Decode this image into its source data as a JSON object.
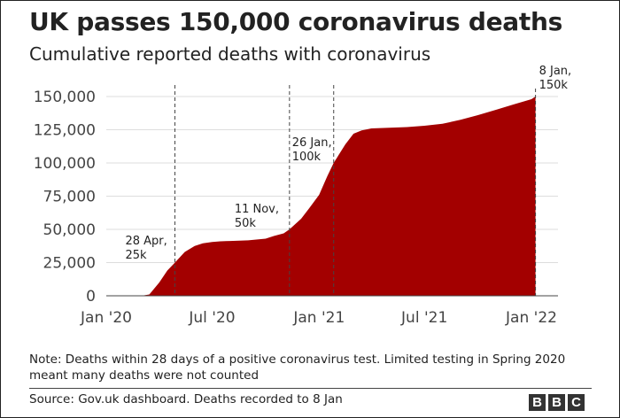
{
  "chart_data": {
    "type": "area",
    "title": "UK passes 150,000 coronavirus deaths",
    "subtitle": "Cumulative reported deaths with coronavirus",
    "xlabel": "",
    "ylabel": "",
    "ylim": [
      0,
      150000
    ],
    "grid": true,
    "area_color": "#a30000",
    "y_ticks": [
      {
        "value": 0,
        "label": "0"
      },
      {
        "value": 25000,
        "label": "25,000"
      },
      {
        "value": 50000,
        "label": "50,000"
      },
      {
        "value": 75000,
        "label": "75,000"
      },
      {
        "value": 100000,
        "label": "100,000"
      },
      {
        "value": 125000,
        "label": "125,000"
      },
      {
        "value": 150000,
        "label": "150,000"
      }
    ],
    "x_ticks": [
      {
        "date": "2020-01-01",
        "label": "Jan '20"
      },
      {
        "date": "2020-07-01",
        "label": "Jul '20"
      },
      {
        "date": "2021-01-01",
        "label": "Jan '21"
      },
      {
        "date": "2021-07-01",
        "label": "Jul '21"
      },
      {
        "date": "2022-01-01",
        "label": "Jan '22"
      }
    ],
    "x": [
      "2020-03-01",
      "2020-03-15",
      "2020-04-01",
      "2020-04-15",
      "2020-04-28",
      "2020-05-15",
      "2020-06-01",
      "2020-06-15",
      "2020-07-01",
      "2020-07-15",
      "2020-08-01",
      "2020-09-01",
      "2020-10-01",
      "2020-10-15",
      "2020-11-01",
      "2020-11-11",
      "2020-12-01",
      "2020-12-15",
      "2021-01-01",
      "2021-01-15",
      "2021-01-26",
      "2021-02-15",
      "2021-03-01",
      "2021-03-15",
      "2021-04-01",
      "2021-06-01",
      "2021-07-01",
      "2021-08-01",
      "2021-09-01",
      "2021-10-01",
      "2021-11-01",
      "2021-12-01",
      "2022-01-01",
      "2022-01-08"
    ],
    "values": [
      0,
      1000,
      10000,
      19000,
      25000,
      33000,
      37500,
      39500,
      40500,
      41000,
      41300,
      41700,
      43000,
      45000,
      47000,
      50000,
      58000,
      66000,
      76000,
      90000,
      100000,
      114000,
      122000,
      124500,
      126000,
      127000,
      128000,
      129500,
      132500,
      136000,
      140000,
      144000,
      148000,
      150000
    ],
    "annotations": [
      {
        "date": "2020-04-28",
        "lines": [
          "28 Apr,",
          "25k"
        ]
      },
      {
        "date": "2020-11-11",
        "lines": [
          "11 Nov,",
          "50k"
        ]
      },
      {
        "date": "2021-01-26",
        "lines": [
          "26 Jan,",
          "100k"
        ]
      },
      {
        "date": "2022-01-08",
        "lines": [
          "8 Jan,",
          "150k"
        ]
      }
    ]
  },
  "note": "Note: Deaths within 28 days of a positive coronavirus test. Limited testing in Spring 2020 meant many deaths were not counted",
  "source": "Source: Gov.uk dashboard. Deaths recorded to 8 Jan",
  "logo": [
    "B",
    "B",
    "C"
  ]
}
